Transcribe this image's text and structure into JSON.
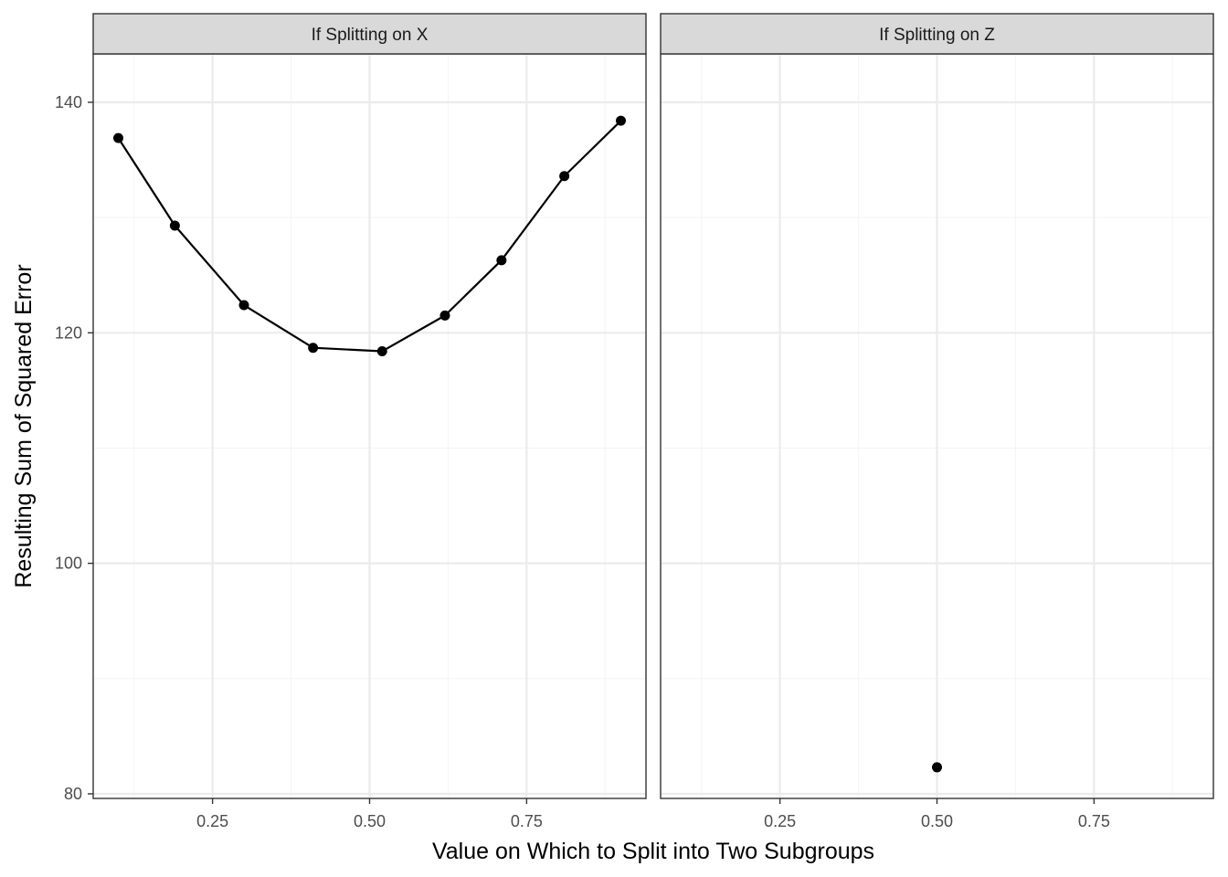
{
  "chart_data": {
    "type": "line",
    "xlabel": "Value on Which to Split into Two Subgroups",
    "ylabel": "Resulting Sum of Squared Error",
    "xlim": [
      0.06,
      0.94
    ],
    "ylim": [
      79.6,
      144.2
    ],
    "x_major_ticks": [
      0.25,
      0.5,
      0.75
    ],
    "x_tick_labels": [
      "0.25",
      "0.50",
      "0.75"
    ],
    "x_minor_ticks": [
      0.125,
      0.375,
      0.625,
      0.875
    ],
    "y_major_ticks": [
      80,
      100,
      120,
      140
    ],
    "y_tick_labels": [
      "80",
      "100",
      "120",
      "140"
    ],
    "y_minor_ticks": [
      90,
      110,
      130
    ],
    "grid": true,
    "facets": [
      {
        "strip_label": "If Splitting on X",
        "show_y_axis": true,
        "series": [
          {
            "geom": "line+point",
            "x": [
              0.1,
              0.19,
              0.3,
              0.41,
              0.52,
              0.62,
              0.71,
              0.81,
              0.9
            ],
            "y": [
              136.9,
              129.3,
              122.4,
              118.7,
              118.4,
              121.5,
              126.3,
              133.6,
              138.4
            ]
          }
        ]
      },
      {
        "strip_label": "If Splitting on Z",
        "show_y_axis": false,
        "series": [
          {
            "geom": "point",
            "x": [
              0.5
            ],
            "y": [
              82.3
            ]
          }
        ]
      }
    ],
    "colors": {
      "panel_border": "#333333",
      "strip_fill": "#d9d9d9",
      "grid_major": "#ebebeb",
      "grid_minor": "#f5f5f5",
      "data": "#000000"
    }
  }
}
